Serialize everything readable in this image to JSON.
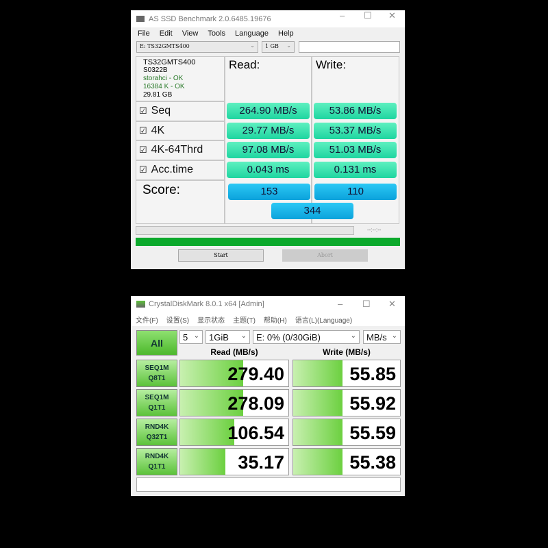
{
  "asssd": {
    "title": "AS SSD Benchmark 2.0.6485.19676",
    "menu": [
      "File",
      "Edit",
      "View",
      "Tools",
      "Language",
      "Help"
    ],
    "drive": "E: TS32GMTS400",
    "size": "1 GB",
    "info": {
      "model": "TS32GMTS400",
      "firmware": "S0322B",
      "driver": "storahci - OK",
      "align": "16384 K - OK",
      "capacity": "29.81 GB"
    },
    "read_header": "Read:",
    "write_header": "Write:",
    "rows": [
      {
        "label": "Seq",
        "read": "264.90 MB/s",
        "write": "53.86 MB/s",
        "checked": true
      },
      {
        "label": "4K",
        "read": "29.77 MB/s",
        "write": "53.37 MB/s",
        "checked": true
      },
      {
        "label": "4K-64Thrd",
        "read": "97.08 MB/s",
        "write": "51.03 MB/s",
        "checked": true
      },
      {
        "label": "Acc.time",
        "read": "0.043 ms",
        "write": "0.131 ms",
        "checked": true
      }
    ],
    "score_label": "Score:",
    "score_read": "153",
    "score_write": "110",
    "score_total": "344",
    "time": "--:--:--",
    "progress": 1.0,
    "start": "Start",
    "abort": "Abort"
  },
  "cdm": {
    "title": "CrystalDiskMark 8.0.1 x64 [Admin]",
    "menu": [
      "文件(F)",
      "设置(S)",
      "显示状态",
      "主题(T)",
      "帮助(H)",
      "语言(L)(Language)"
    ],
    "all": "All",
    "count": "5",
    "size": "1GiB",
    "drive": "E: 0% (0/30GiB)",
    "unit": "MB/s",
    "read_header": "Read (MB/s)",
    "write_header": "Write (MB/s)",
    "rows": [
      {
        "l1": "SEQ1M",
        "l2": "Q8T1",
        "read": "279.40",
        "write": "55.85",
        "read_fill": 0.58,
        "write_fill": 0.46
      },
      {
        "l1": "SEQ1M",
        "l2": "Q1T1",
        "read": "278.09",
        "write": "55.92",
        "read_fill": 0.58,
        "write_fill": 0.46
      },
      {
        "l1": "RND4K",
        "l2": "Q32T1",
        "read": "106.54",
        "write": "55.59",
        "read_fill": 0.5,
        "write_fill": 0.46
      },
      {
        "l1": "RND4K",
        "l2": "Q1T1",
        "read": "35.17",
        "write": "55.38",
        "read_fill": 0.42,
        "write_fill": 0.46
      }
    ],
    "colors": {
      "accent": "#5cc23a"
    }
  }
}
